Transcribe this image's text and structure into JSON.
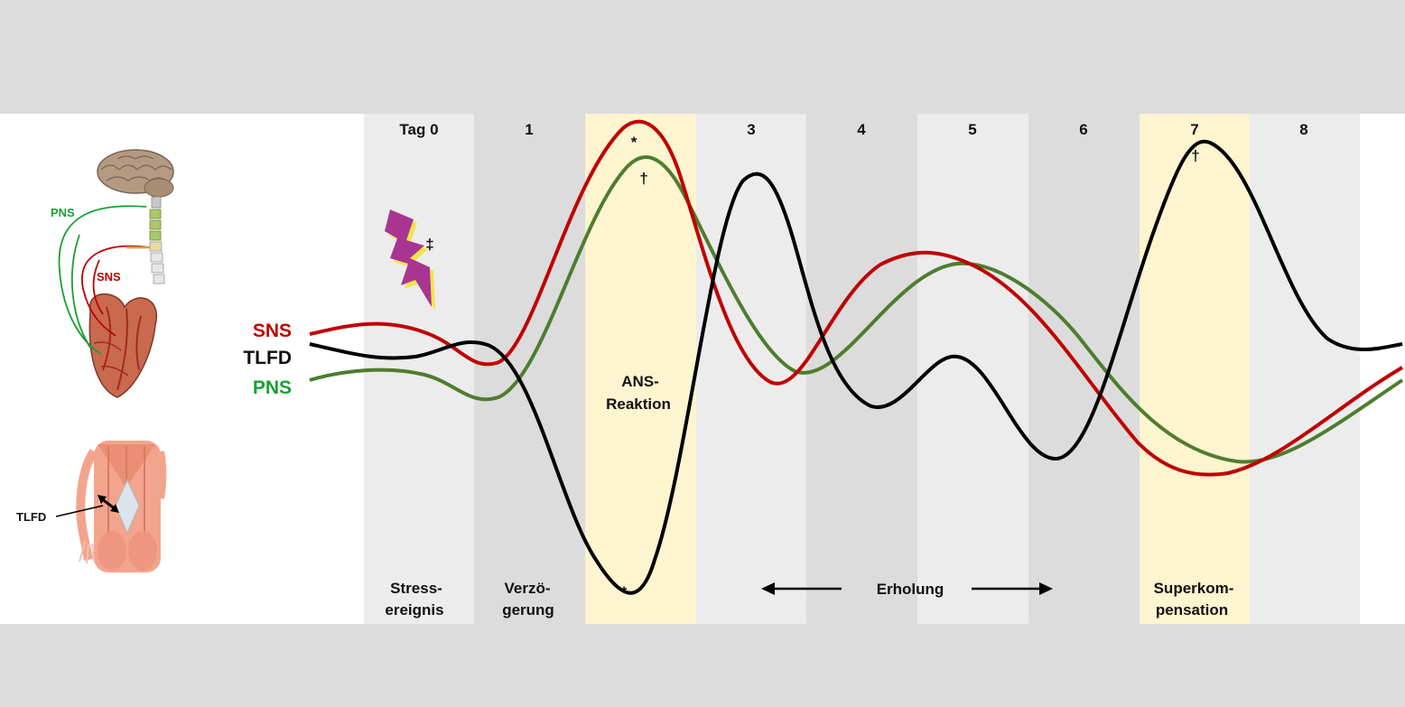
{
  "days": [
    "Tag 0",
    "1",
    "",
    "3",
    "4",
    "5",
    "6",
    "7",
    "8"
  ],
  "phases": {
    "stress": [
      "Stress-",
      "ereignis"
    ],
    "delay": [
      "Verzö-",
      "gerung"
    ],
    "ans": [
      "ANS-",
      "Reaktion"
    ],
    "recovery": "Erholung",
    "supercomp": [
      "Superkom-",
      "pensation"
    ]
  },
  "legend": {
    "sns": {
      "label": "SNS",
      "color": "#c00000"
    },
    "tlfd": {
      "label": "TLFD",
      "color": "#000000"
    },
    "pns": {
      "label": "PNS",
      "color": "#1aa032"
    }
  },
  "curve_colors": {
    "sns": "#c00000",
    "tlfd": "#000000",
    "pns": "#4e7d2e"
  },
  "markers": {
    "sns_peak": "*",
    "pns_peak": "†",
    "tlfd_trough": "*",
    "tlfd_day7_peak": "†",
    "stress_event": "‡"
  },
  "anatomy": {
    "pns_label": "PNS",
    "sns_label": "SNS",
    "tlfd_label": "TLFD"
  },
  "colors": {
    "band_light": "#ececec",
    "band_dark": "#dcdcdc",
    "band_highlight": "#fdf4d0",
    "lightning": "#a8358f"
  }
}
